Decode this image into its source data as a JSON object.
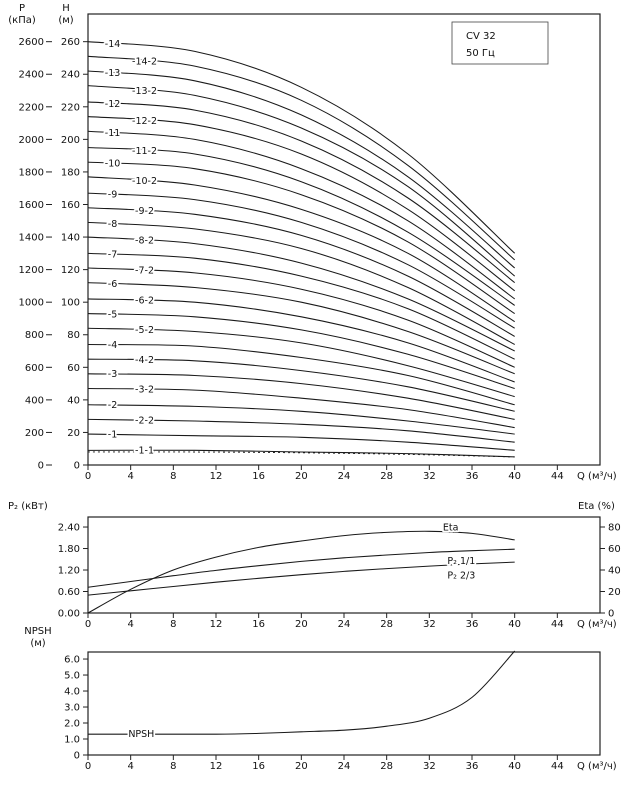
{
  "chart_data": [
    {
      "id": "head-capacity",
      "type": "line",
      "title": "CV 32",
      "subtitle": "50 Гц",
      "x_axis": {
        "label": "Q (м³/ч)",
        "lim": [
          0,
          48
        ],
        "tick_vals": [
          0,
          4,
          8,
          12,
          16,
          20,
          24,
          28,
          32,
          36,
          40,
          44
        ],
        "tick_labels": [
          "0",
          "4",
          "8",
          "12",
          "16",
          "20",
          "24",
          "28",
          "32",
          "36",
          "40",
          "44"
        ]
      },
      "y_axis_outer": {
        "title_lines": [
          "P",
          "(кПа)"
        ],
        "lim": [
          0,
          2770
        ],
        "tick_vals": [
          0,
          200,
          400,
          600,
          800,
          1000,
          1200,
          1400,
          1600,
          1800,
          2000,
          2200,
          2400,
          2600
        ],
        "tick_labels": [
          "0",
          "200",
          "400",
          "600",
          "800",
          "1000",
          "1200",
          "1400",
          "1600",
          "1800",
          "2000",
          "2200",
          "2400",
          "2600"
        ]
      },
      "y_axis": {
        "title_lines": [
          "H",
          "(м)"
        ],
        "lim": [
          0,
          277
        ],
        "tick_vals": [
          0,
          20,
          40,
          60,
          80,
          100,
          120,
          140,
          160,
          180,
          200,
          220,
          240,
          260
        ],
        "tick_labels": [
          "0",
          "20",
          "40",
          "60",
          "80",
          "100",
          "120",
          "140",
          "160",
          "180",
          "200",
          "220",
          "240",
          "260"
        ]
      },
      "x": [
        0,
        10,
        20,
        30,
        40
      ],
      "series": [
        {
          "name": "-14",
          "label_q": 2.3,
          "values": [
            260,
            254,
            232,
            191,
            130
          ]
        },
        {
          "name": "-14-2",
          "label_q": 5.3,
          "values": [
            251,
            245,
            224,
            184,
            126
          ]
        },
        {
          "name": "-13",
          "label_q": 2.3,
          "values": [
            242,
            236,
            215,
            177,
            121
          ]
        },
        {
          "name": "-13-2",
          "label_q": 5.3,
          "values": [
            233,
            227,
            207,
            171,
            116
          ]
        },
        {
          "name": "-12",
          "label_q": 2.3,
          "values": [
            223,
            218,
            199,
            164,
            112
          ]
        },
        {
          "name": "-12-2",
          "label_q": 5.3,
          "values": [
            214,
            209,
            191,
            157,
            107
          ]
        },
        {
          "name": "-11",
          "label_q": 2.3,
          "values": [
            205,
            200,
            182,
            150,
            102
          ]
        },
        {
          "name": "-11-2",
          "label_q": 5.3,
          "values": [
            195,
            191,
            174,
            143,
            98
          ]
        },
        {
          "name": "-10",
          "label_q": 2.3,
          "values": [
            186,
            182,
            166,
            137,
            93
          ]
        },
        {
          "name": "-10-2",
          "label_q": 5.3,
          "values": [
            177,
            172,
            157,
            130,
            88
          ]
        },
        {
          "name": "-9",
          "label_q": 2.3,
          "values": [
            167,
            163,
            149,
            123,
            84
          ]
        },
        {
          "name": "-9-2",
          "label_q": 5.3,
          "values": [
            158,
            154,
            141,
            116,
            79
          ]
        },
        {
          "name": "-8",
          "label_q": 2.3,
          "values": [
            149,
            145,
            133,
            109,
            74
          ]
        },
        {
          "name": "-8-2",
          "label_q": 5.3,
          "values": [
            140,
            136,
            124,
            102,
            70
          ]
        },
        {
          "name": "-7",
          "label_q": 2.3,
          "values": [
            130,
            127,
            116,
            96,
            65
          ]
        },
        {
          "name": "-7-2",
          "label_q": 5.3,
          "values": [
            121,
            118,
            108,
            89,
            60
          ]
        },
        {
          "name": "-6",
          "label_q": 2.3,
          "values": [
            112,
            109,
            100,
            82,
            56
          ]
        },
        {
          "name": "-6-2",
          "label_q": 5.3,
          "values": [
            102,
            100,
            91,
            75,
            51
          ]
        },
        {
          "name": "-5",
          "label_q": 2.3,
          "values": [
            93,
            91,
            83,
            68,
            47
          ]
        },
        {
          "name": "-5-2",
          "label_q": 5.3,
          "values": [
            84,
            82,
            75,
            61,
            42
          ]
        },
        {
          "name": "-4",
          "label_q": 2.3,
          "values": [
            74,
            73,
            66,
            55,
            37
          ]
        },
        {
          "name": "-4-2",
          "label_q": 5.3,
          "values": [
            65,
            64,
            58,
            48,
            33
          ]
        },
        {
          "name": "-3",
          "label_q": 2.3,
          "values": [
            56,
            55,
            50,
            41,
            28
          ]
        },
        {
          "name": "-3-2",
          "label_q": 5.3,
          "values": [
            47,
            46,
            41,
            34,
            23
          ]
        },
        {
          "name": "-2",
          "label_q": 2.3,
          "values": [
            37,
            36,
            33,
            27,
            19
          ]
        },
        {
          "name": "-2-2",
          "label_q": 5.3,
          "values": [
            28,
            27,
            25,
            21,
            14
          ]
        },
        {
          "name": "-1",
          "label_q": 2.3,
          "values": [
            19,
            18,
            17,
            14,
            9
          ]
        },
        {
          "name": "-1-1",
          "label_q": 5.3,
          "values": [
            9,
            9,
            8,
            7,
            5
          ]
        },
        {
          "name": "limit-line",
          "label": null,
          "dashed": true,
          "values": [
            8,
            8,
            7.5,
            6.5,
            5
          ]
        }
      ]
    },
    {
      "id": "power-efficiency",
      "type": "line",
      "x_axis": {
        "label": "Q (м³/ч)",
        "lim": [
          0,
          48
        ],
        "tick_vals": [
          0,
          4,
          8,
          12,
          16,
          20,
          24,
          28,
          32,
          36,
          40,
          44
        ],
        "tick_labels": [
          "0",
          "4",
          "8",
          "12",
          "16",
          "20",
          "24",
          "28",
          "32",
          "36",
          "40",
          "44"
        ]
      },
      "y_axis": {
        "header": "P₂ (кВт)",
        "lim": [
          0,
          2.68
        ],
        "tick_vals": [
          0,
          0.6,
          1.2,
          1.8,
          2.4
        ],
        "tick_labels": [
          "0.00",
          "0.60",
          "1.20",
          "1.80",
          "2.40"
        ]
      },
      "y_axis_right": {
        "header": "Eta (%)",
        "lim": [
          0,
          89.3
        ],
        "tick_vals": [
          0,
          20,
          40,
          60,
          80
        ],
        "tick_labels": [
          "0",
          "20",
          "40",
          "60",
          "80"
        ]
      },
      "x": [
        0,
        4,
        8,
        12,
        16,
        20,
        24,
        28,
        32,
        36,
        40
      ],
      "series": [
        {
          "name": "Eta",
          "axis": "right",
          "label_q": 34,
          "label_dy": -5,
          "values": [
            0,
            22,
            40,
            52,
            61,
            67,
            72,
            75,
            76,
            74,
            68
          ]
        },
        {
          "name": "P₂ 1/1",
          "label_q": 35,
          "label_dy": 10,
          "values": [
            0.72,
            0.88,
            1.04,
            1.19,
            1.32,
            1.44,
            1.54,
            1.62,
            1.69,
            1.74,
            1.78
          ]
        },
        {
          "name": "P₂ 2/3",
          "label_q": 35,
          "label_dy": 11,
          "values": [
            0.5,
            0.62,
            0.74,
            0.86,
            0.97,
            1.07,
            1.16,
            1.24,
            1.31,
            1.37,
            1.42
          ]
        }
      ]
    },
    {
      "id": "npsh",
      "type": "line",
      "x_axis": {
        "label": "Q (м³/ч)",
        "lim": [
          0,
          48
        ],
        "tick_vals": [
          0,
          4,
          8,
          12,
          16,
          20,
          24,
          28,
          32,
          36,
          40,
          44
        ],
        "tick_labels": [
          "0",
          "4",
          "8",
          "12",
          "16",
          "20",
          "24",
          "28",
          "32",
          "36",
          "40",
          "44"
        ]
      },
      "y_axis": {
        "title_lines": [
          "NPSH",
          "(м)"
        ],
        "lim": [
          0,
          6.44
        ],
        "tick_vals": [
          0,
          1,
          2,
          3,
          4,
          5,
          6
        ],
        "tick_labels": [
          "0",
          "1.0",
          "2.0",
          "3.0",
          "4.0",
          "5.0",
          "6.0"
        ]
      },
      "x": [
        0,
        4,
        8,
        12,
        16,
        20,
        24,
        28,
        32,
        36,
        40
      ],
      "series": [
        {
          "name": "NPSH",
          "label_q": 5,
          "label_dy": 0,
          "values": [
            1.3,
            1.3,
            1.3,
            1.3,
            1.35,
            1.45,
            1.55,
            1.8,
            2.3,
            3.6,
            6.5
          ]
        }
      ]
    }
  ]
}
